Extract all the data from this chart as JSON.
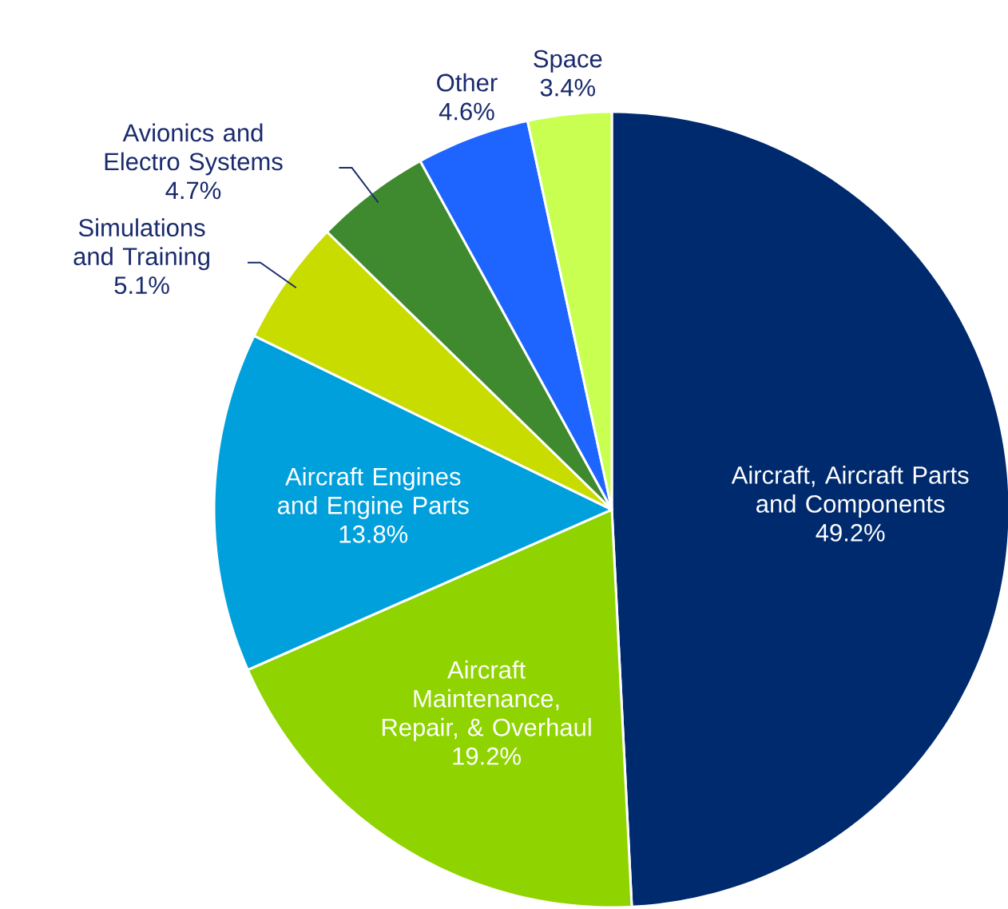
{
  "chart_data": {
    "type": "pie",
    "categories": [
      "Aircraft, Aircraft Parts and Components",
      "Aircraft Maintenance, Repair, & Overhaul",
      "Aircraft Engines and Engine Parts",
      "Simulations and Training",
      "Avionics and Electro Systems",
      "Other",
      "Space"
    ],
    "values": [
      49.2,
      19.2,
      13.8,
      5.1,
      4.7,
      4.6,
      3.4
    ],
    "colors": [
      "#002a6e",
      "#8fd400",
      "#00a0dc",
      "#c8dc00",
      "#3f8a2e",
      "#1e64ff",
      "#c8ff50"
    ],
    "value_labels": [
      "49.2%",
      "19.2%",
      "13.8%",
      "5.1%",
      "4.7%",
      "4.6%",
      "3.4%"
    ]
  }
}
